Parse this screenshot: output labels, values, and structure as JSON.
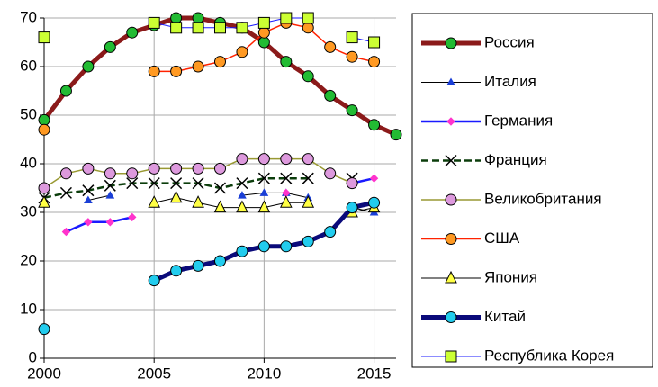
{
  "chart_data": {
    "type": "line",
    "x": [
      2000,
      2001,
      2002,
      2003,
      2004,
      2005,
      2006,
      2007,
      2008,
      2009,
      2010,
      2011,
      2012,
      2013,
      2014,
      2015,
      2016
    ],
    "xlim": [
      2000,
      2016
    ],
    "xticks": [
      2000,
      2005,
      2010,
      2015
    ],
    "ylim": [
      0,
      70
    ],
    "yticks": [
      0,
      10,
      20,
      30,
      40,
      50,
      60,
      70
    ],
    "grid": true,
    "legend": "right",
    "series": [
      {
        "name": "Россия",
        "color": "#8b1a1a",
        "marker_color": "#22bb33",
        "marker": "circle",
        "line_width": 5,
        "dash": false,
        "values": [
          49,
          55,
          60,
          64,
          67,
          68.5,
          70,
          70,
          69,
          68,
          65,
          61,
          58,
          54,
          51,
          48,
          46
        ]
      },
      {
        "name": "Италия",
        "color": "#000000",
        "marker_color": "#1a3fd6",
        "marker": "triangle-small",
        "line_width": 1,
        "dash": false,
        "values": [
          null,
          null,
          32.5,
          33.5,
          null,
          null,
          null,
          null,
          null,
          33.5,
          34,
          34,
          33,
          null,
          31,
          30,
          null
        ]
      },
      {
        "name": "Германия",
        "color": "#1a1aff",
        "marker_color": "#ff33cc",
        "marker": "diamond",
        "line_width": 2.5,
        "dash": false,
        "values": [
          null,
          26,
          28,
          28,
          29,
          null,
          null,
          null,
          null,
          null,
          null,
          34,
          null,
          null,
          36,
          37,
          null
        ]
      },
      {
        "name": "Франция",
        "color": "#0b3d0b",
        "marker_color": "#000000",
        "marker": "x",
        "line_width": 2.5,
        "dash": true,
        "values": [
          33,
          34,
          34.5,
          35.5,
          36,
          36,
          36,
          36,
          35,
          36,
          37,
          37,
          37,
          null,
          37,
          null,
          null
        ]
      },
      {
        "name": "Великобритания",
        "color": "#999933",
        "marker_color": "#dd99dd",
        "marker": "circle",
        "line_width": 1.5,
        "dash": false,
        "values": [
          35,
          38,
          39,
          38,
          38,
          39,
          39,
          39,
          39,
          41,
          41,
          41,
          41,
          38,
          36,
          null,
          null
        ]
      },
      {
        "name": "США",
        "color": "#ff2200",
        "marker_color": "#ff9922",
        "marker": "circle",
        "line_width": 1.5,
        "dash": false,
        "values": [
          47,
          null,
          null,
          null,
          null,
          59,
          59,
          60,
          61,
          63,
          67,
          69,
          68,
          64,
          62,
          61,
          null
        ]
      },
      {
        "name": "Япония",
        "color": "#000000",
        "marker_color": "#ffff44",
        "marker": "triangle",
        "line_width": 1,
        "dash": false,
        "values": [
          32,
          null,
          null,
          null,
          null,
          32,
          33,
          32,
          31,
          31,
          31,
          32,
          32,
          null,
          30,
          31,
          null
        ]
      },
      {
        "name": "Китай",
        "color": "#0a0a7a",
        "marker_color": "#22ccee",
        "marker": "circle",
        "line_width": 5,
        "dash": false,
        "values": [
          6,
          null,
          null,
          null,
          null,
          16,
          18,
          19,
          20,
          22,
          23,
          23,
          24,
          26,
          31,
          32,
          null
        ]
      },
      {
        "name": "Республика Корея",
        "color": "#1a1aff",
        "marker_color": "#ccff33",
        "marker": "square",
        "line_width": 1,
        "dash": false,
        "values": [
          66,
          null,
          null,
          null,
          null,
          69,
          68,
          68,
          68,
          68,
          69,
          70,
          70,
          null,
          66,
          65,
          null
        ]
      }
    ]
  }
}
